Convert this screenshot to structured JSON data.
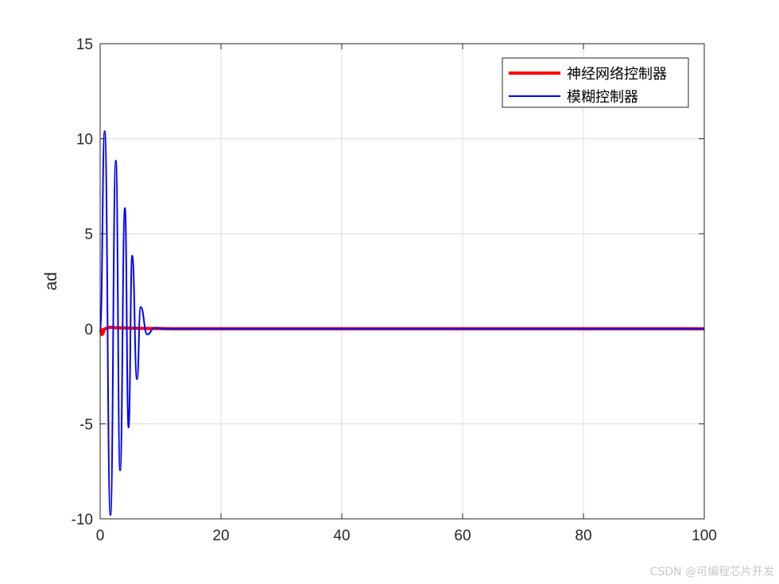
{
  "chart_data": {
    "type": "line",
    "ylabel": "ad",
    "xlabel": "",
    "xlim": [
      0,
      100
    ],
    "ylim": [
      -10,
      15
    ],
    "xticks": [
      0,
      20,
      40,
      60,
      80,
      100
    ],
    "yticks": [
      -10,
      -5,
      0,
      5,
      10,
      15
    ],
    "grid": true,
    "legend_position": "top-right",
    "series": [
      {
        "name": "神经网络控制器",
        "color": "#ff0000",
        "x": [
          0,
          0.3,
          0.8,
          1.5,
          3,
          8,
          12,
          100
        ],
        "y": [
          0,
          -0.3,
          0,
          0.08,
          0.05,
          0.02,
          0,
          0
        ]
      },
      {
        "name": "模糊控制器",
        "color": "#0000ff",
        "x": [
          0,
          0.75,
          1.7,
          2.6,
          3.3,
          4.1,
          4.7,
          5.3,
          6.1,
          6.7,
          7.8,
          9.0,
          11,
          100
        ],
        "y": [
          0,
          10.4,
          -9.8,
          8.85,
          -7.45,
          6.35,
          -5.2,
          3.85,
          -2.65,
          1.15,
          -0.3,
          0.05,
          0,
          0
        ]
      }
    ]
  },
  "watermark": "CSDN @可编程芯片开发"
}
